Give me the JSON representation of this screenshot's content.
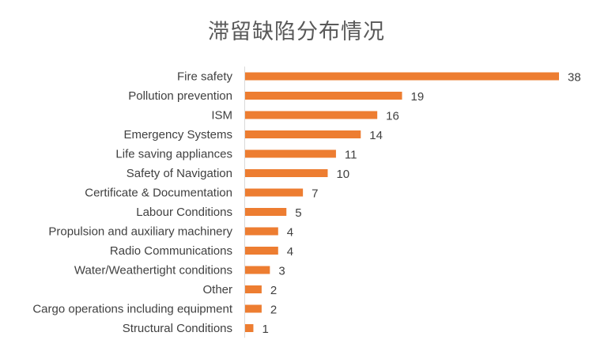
{
  "chart_data": {
    "type": "bar",
    "orientation": "horizontal",
    "title": "滞留缺陷分布情况",
    "categories": [
      "Fire safety",
      "Pollution prevention",
      "ISM",
      "Emergency Systems",
      "Life saving appliances",
      "Safety of Navigation",
      "Certificate & Documentation",
      "Labour Conditions",
      "Propulsion and auxiliary machinery",
      "Radio Communications",
      "Water/Weathertight conditions",
      "Other",
      "Cargo operations including equipment",
      "Structural Conditions"
    ],
    "values": [
      38,
      19,
      16,
      14,
      11,
      10,
      7,
      5,
      4,
      4,
      3,
      2,
      2,
      1
    ],
    "xlim": [
      0,
      38
    ],
    "grid": false,
    "legend": "none",
    "data_labels": true,
    "bar_color": "#ED7D31"
  }
}
